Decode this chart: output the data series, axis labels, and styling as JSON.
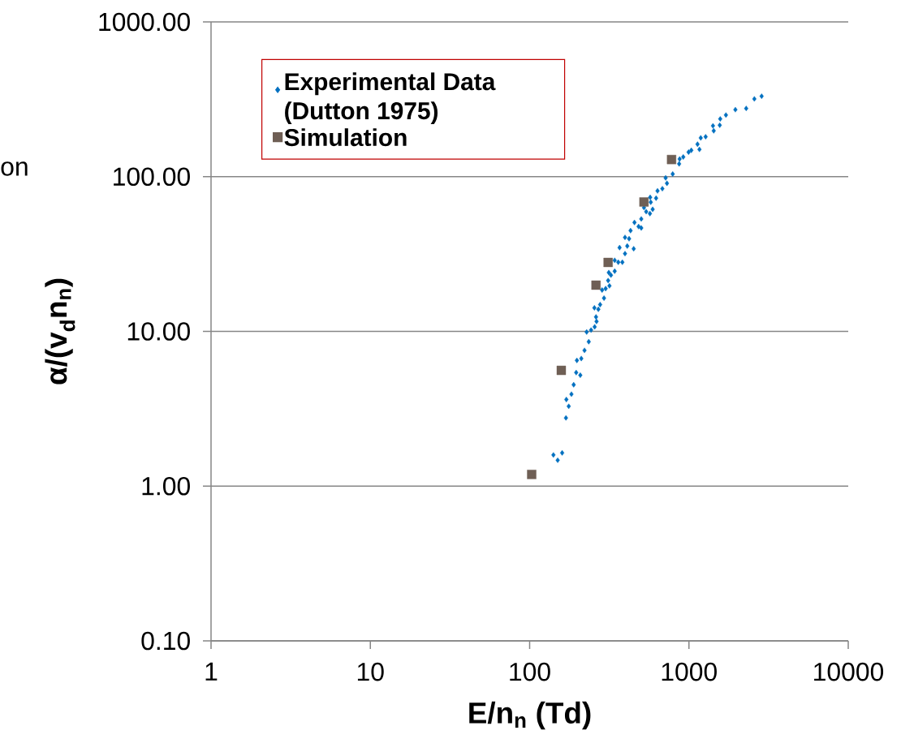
{
  "chart_data": {
    "type": "scatter",
    "xlabel": "E/n$_{n}$ (Td)",
    "ylabel": "α/(v$_{d}$n$_{n}$)",
    "annotations": [
      "on"
    ],
    "log": "xy",
    "grid": "y",
    "legend": "top left",
    "xlim": [
      1,
      10000
    ],
    "ylim": [
      0.1,
      1000
    ],
    "xticks": [
      1,
      10,
      100,
      1000,
      10000
    ],
    "yticks": [
      {
        "value": 0.1,
        "label": "0.10"
      },
      {
        "value": 1,
        "label": "1.00"
      },
      {
        "value": 10,
        "label": "10.00"
      },
      {
        "value": 100,
        "label": "100.00"
      },
      {
        "value": 1000,
        "label": "1000.00"
      }
    ],
    "series": [
      {
        "name": "Experimental Data (Dutton 1975)",
        "color": "#0070c0",
        "marker": "diamond",
        "x": [
          141,
          150,
          160,
          169,
          176,
          170,
          183,
          189,
          196,
          208,
          198,
          211,
          221,
          235,
          228,
          243,
          256,
          263,
          261,
          255,
          270,
          277,
          293,
          285,
          300,
          317,
          311,
          324,
          314,
          342,
          342,
          360,
          382,
          367,
          397,
          410,
          450,
          397,
          421,
          430,
          455,
          483,
          502,
          502,
          539,
          522,
          569,
          592,
          576,
          622,
          571,
          635,
          681,
          714,
          728,
          791,
          868,
          874,
          921,
          995,
          1035,
          1132,
          1164,
          1186,
          1273,
          1415,
          1431,
          1561,
          1572,
          1707,
          1957,
          2288,
          2574,
          2860
        ],
        "values": [
          1.59,
          1.47,
          1.64,
          2.76,
          3.28,
          3.63,
          3.93,
          4.52,
          5.42,
          5.21,
          6.49,
          6.68,
          7.54,
          8.58,
          9.91,
          10.2,
          10.7,
          11.6,
          12.4,
          14.2,
          13.9,
          14.9,
          16.4,
          18.5,
          18.9,
          19.7,
          21.3,
          23.1,
          24.0,
          24.5,
          28.8,
          28.0,
          28.0,
          34.8,
          31.8,
          35.6,
          34.2,
          40.5,
          39.7,
          44.8,
          50.6,
          47.6,
          46.6,
          53.3,
          59.4,
          63.1,
          57.7,
          61.5,
          68.4,
          72.6,
          73.5,
          80.9,
          83.6,
          98.2,
          90.6,
          104,
          121,
          130,
          134,
          144,
          148,
          162,
          150,
          178,
          181,
          213,
          198,
          215,
          236,
          250,
          271,
          276,
          318,
          331
        ]
      },
      {
        "name": "Simulation",
        "color": "#6f5f55",
        "marker": "square",
        "x": [
          103,
          158,
          261,
          311,
          522,
          778
        ],
        "values": [
          1.19,
          5.6,
          19.9,
          27.9,
          68.6,
          129
        ]
      }
    ]
  }
}
